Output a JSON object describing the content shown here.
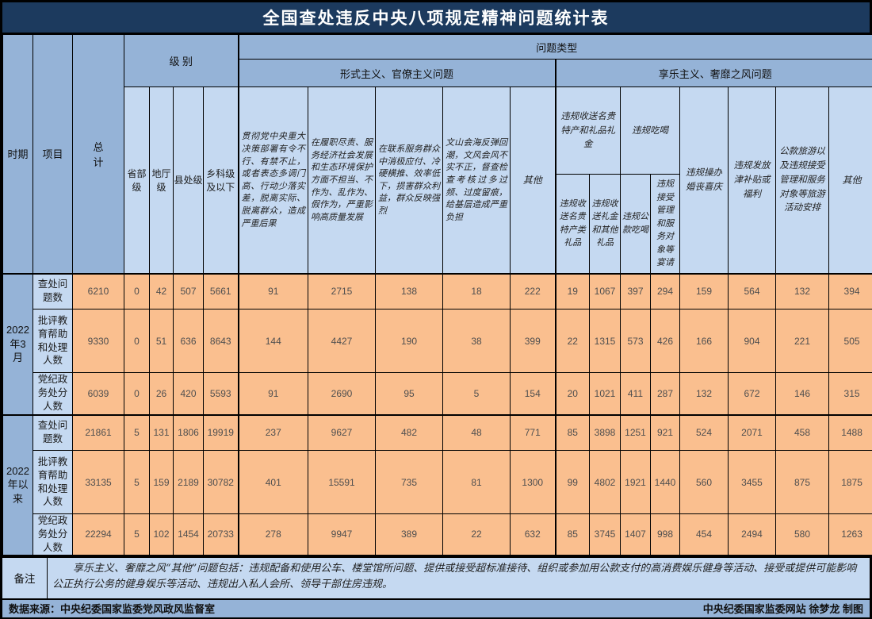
{
  "chart_data": {
    "type": "table",
    "title": "全国查处违反中央八项规定精神问题统计表",
    "header": {
      "period": "时期",
      "item": "项目",
      "total": "总\n计",
      "level_group": "级 别",
      "problem_group": "问题类型",
      "levels": [
        "省部级",
        "地厅级",
        "县处级",
        "乡科级及以下"
      ],
      "formalism": {
        "group": "形式主义、官僚主义问题",
        "cols": [
          "贯彻党中央重大决策部署有令不行、有禁不止，或者表态多调门高、行动少落实差，脱离实际、脱离群众，造成严重后果",
          "在履职尽责、服务经济社会发展和生态环境保护方面不担当、不作为、乱作为、假作为，严重影响高质量发展",
          "在联系服务群众中消极应付、冷硬横推、效率低下，损害群众利益，群众反映强烈",
          "文山会海反弹回潮，文风会风不实不正，督查检查考核过多过频、过度留痕，给基层造成严重负担",
          "其他"
        ]
      },
      "hedonism": {
        "group": "享乐主义、奢靡之风问题",
        "gift_group": "违规收送名贵特产和礼品礼金",
        "gift_cols": [
          "违规收送名贵特产类礼品",
          "违规收送礼金和其他礼品"
        ],
        "dining_group": "违规吃喝",
        "dining_cols": [
          "违规公款吃喝",
          "违规接受管理和服务对象等宴请"
        ],
        "single_cols": [
          "违规操办婚丧喜庆",
          "违规发放津补贴或福利",
          "公款旅游以及违规接受管理和服务对象等旅游活动安排",
          "其他"
        ]
      }
    },
    "columns": [
      "总计",
      "省部级",
      "地厅级",
      "县处级",
      "乡科级及以下",
      "形式主义-贯彻党中央重大决策部署问题",
      "形式主义-履职尽责服务发展问题",
      "形式主义-联系服务群众问题",
      "形式主义-文山会海督查考核问题",
      "形式主义-其他",
      "违规收送名贵特产类礼品",
      "违规收送礼金和其他礼品",
      "违规公款吃喝",
      "违规接受管理和服务对象等宴请",
      "违规操办婚丧喜庆",
      "违规发放津补贴或福利",
      "公款旅游以及违规接受管理和服务对象等旅游活动安排",
      "享乐主义-其他"
    ],
    "periods": [
      {
        "label": "2022年3月",
        "rows": [
          {
            "label": "查处问题数",
            "values": [
              6210,
              0,
              42,
              507,
              5661,
              91,
              2715,
              138,
              18,
              222,
              19,
              1067,
              397,
              294,
              159,
              564,
              132,
              394
            ]
          },
          {
            "label": "批评教育帮助和处理人数",
            "values": [
              9330,
              0,
              51,
              636,
              8643,
              144,
              4427,
              190,
              38,
              399,
              22,
              1315,
              573,
              426,
              166,
              904,
              221,
              505
            ]
          },
          {
            "label": "党纪政务处分人数",
            "values": [
              6039,
              0,
              26,
              420,
              5593,
              91,
              2690,
              95,
              5,
              154,
              20,
              1021,
              411,
              287,
              132,
              672,
              146,
              315
            ]
          }
        ]
      },
      {
        "label": "2022年以来",
        "rows": [
          {
            "label": "查处问题数",
            "values": [
              21861,
              5,
              131,
              1806,
              19919,
              237,
              9627,
              482,
              48,
              771,
              85,
              3898,
              1251,
              921,
              524,
              2071,
              458,
              1488
            ]
          },
          {
            "label": "批评教育帮助和处理人数",
            "values": [
              33135,
              5,
              159,
              2189,
              30782,
              401,
              15591,
              735,
              81,
              1300,
              99,
              4802,
              1921,
              1440,
              560,
              3455,
              875,
              1875
            ]
          },
          {
            "label": "党纪政务处分人数",
            "values": [
              22294,
              5,
              102,
              1454,
              20733,
              278,
              9947,
              389,
              22,
              632,
              85,
              3745,
              1407,
              998,
              454,
              2494,
              580,
              1263
            ]
          }
        ]
      }
    ],
    "note": {
      "label": "备注",
      "text": "享乐主义、奢靡之风“其他”问题包括：违规配备和使用公车、楼堂馆所问题、提供或接受超标准接待、组织或参加用公款支付的高消费娱乐健身等活动、接受或提供可能影响公正执行公务的健身娱乐等活动、违规出入私人会所、领导干部住房违规。"
    },
    "footer": {
      "source": "数据来源：中央纪委国家监委党风政风监督室",
      "credit": "中央纪委国家监委网站 徐梦龙 制图"
    },
    "colors": {
      "title_bg": "#1C3A5E",
      "header_medium": "#95B3D7",
      "header_light": "#C5D9F1",
      "data_bg": "#FABF8F",
      "border": "#000000"
    }
  }
}
